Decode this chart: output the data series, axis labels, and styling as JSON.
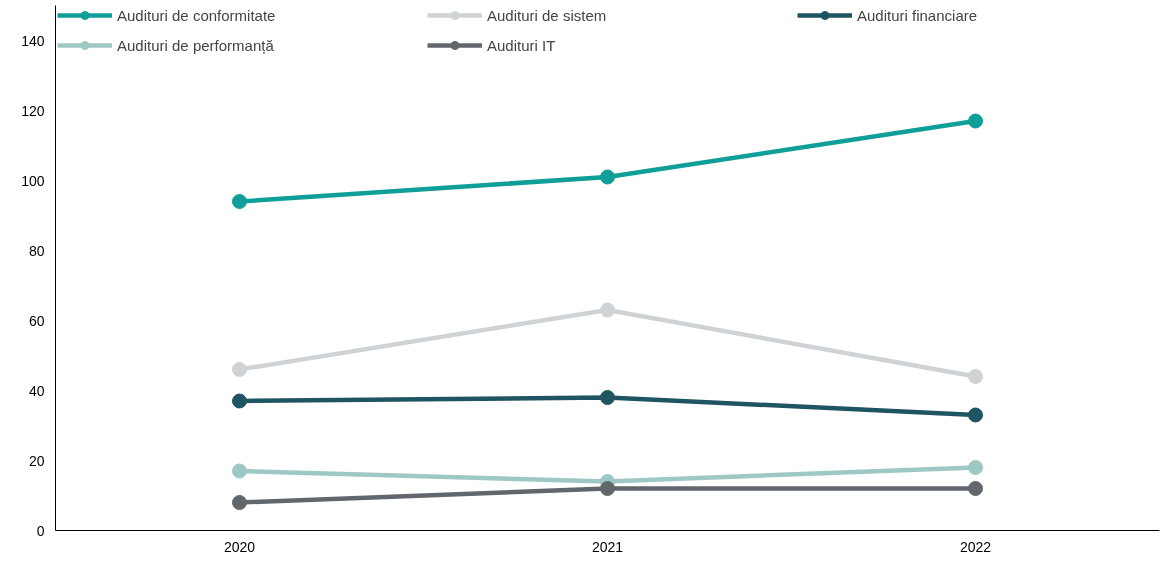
{
  "chart_data": {
    "type": "line",
    "categories": [
      "2020",
      "2021",
      "2022"
    ],
    "series": [
      {
        "name": "Audituri de conformitate",
        "color": "#109e98",
        "values": [
          94,
          101,
          117
        ]
      },
      {
        "name": "Audituri de sistem",
        "color": "#cfd3d6",
        "values": [
          46,
          63,
          44
        ]
      },
      {
        "name": "Audituri financiare",
        "color": "#1f5462",
        "values": [
          37,
          38,
          33
        ]
      },
      {
        "name": "Audituri de performanță",
        "color": "#9dc8c3",
        "values": [
          17,
          14,
          18
        ]
      },
      {
        "name": "Audituri IT",
        "color": "#62676c",
        "values": [
          8,
          12,
          12
        ]
      }
    ],
    "ylim": [
      0,
      150
    ],
    "yticks": [
      0,
      20,
      40,
      60,
      80,
      100,
      120,
      140
    ],
    "grid": false,
    "legend": "top",
    "marker": "circle",
    "line_style": "solid"
  }
}
